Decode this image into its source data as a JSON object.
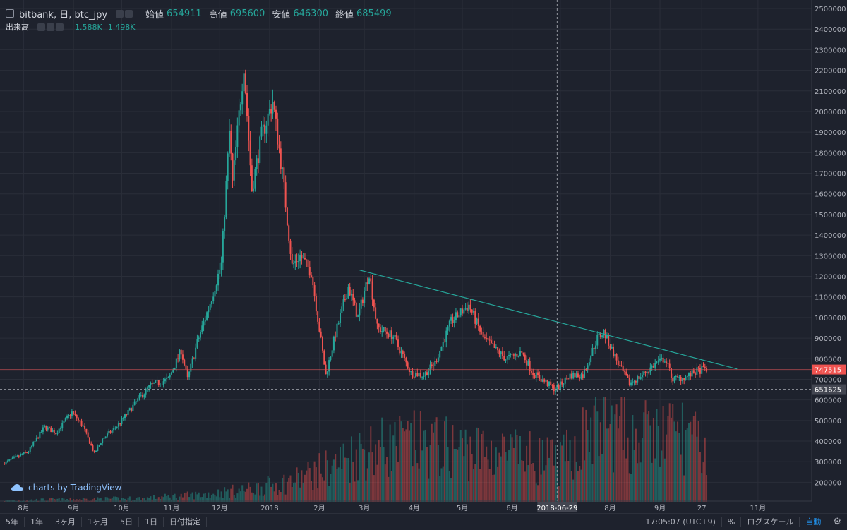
{
  "header": {
    "symbol": "bitbank, 日, btc_jpy",
    "open_label": "始値",
    "open": "654911",
    "high_label": "高値",
    "high": "695600",
    "low_label": "安値",
    "low": "646300",
    "close_label": "終値",
    "close": "685499"
  },
  "volume_legend": {
    "label": "出来高",
    "v1": "1.588K",
    "v2": "1.498K"
  },
  "price_scale": {
    "labels": [
      "2500000",
      "2400000",
      "2300000",
      "2200000",
      "2100000",
      "2000000",
      "1900000",
      "1800000",
      "1700000",
      "1600000",
      "1500000",
      "1400000",
      "1300000",
      "1200000",
      "1100000",
      "1000000",
      "900000",
      "800000",
      "700000",
      "600000",
      "500000",
      "400000",
      "300000",
      "200000"
    ],
    "last_price": "747515",
    "crosshair_price": "651625"
  },
  "time_axis": {
    "labels": [
      "8月",
      "9月",
      "10月",
      "11月",
      "12月",
      "2018",
      "2月",
      "3月",
      "4月",
      "5月",
      "6月",
      "7月",
      "8月",
      "9月",
      "27",
      "11月"
    ],
    "crosshair_date": "2018-06-29"
  },
  "watermark": "charts by TradingView",
  "bottom_bar": {
    "ranges": [
      "5年",
      "1年",
      "3ヶ月",
      "1ヶ月",
      "5日",
      "1日",
      "日付指定"
    ],
    "time": "17:05:07 (UTC+9)",
    "percent": "%",
    "log": "ログスケール",
    "auto": "自動"
  },
  "colors": {
    "up": "#26a69a",
    "down": "#ef5350",
    "trendline": "#26a69a",
    "background": "#1e222d",
    "grid": "#2a2e39"
  },
  "chart_data": {
    "type": "candlestick",
    "ylim": [
      150000,
      2500000
    ],
    "time_range": [
      "2017-07-19",
      "2018-11-05"
    ],
    "series": [
      {
        "name": "price",
        "points": [
          [
            "2017-07-20",
            290000
          ],
          [
            "2017-07-28",
            320000
          ],
          [
            "2017-08-05",
            350000
          ],
          [
            "2017-08-15",
            470000
          ],
          [
            "2017-08-22",
            440000
          ],
          [
            "2017-09-01",
            540000
          ],
          [
            "2017-09-08",
            470000
          ],
          [
            "2017-09-15",
            340000
          ],
          [
            "2017-09-20",
            410000
          ],
          [
            "2017-09-30",
            480000
          ],
          [
            "2017-10-12",
            600000
          ],
          [
            "2017-10-20",
            670000
          ],
          [
            "2017-10-31",
            700000
          ],
          [
            "2017-11-08",
            840000
          ],
          [
            "2017-11-12",
            700000
          ],
          [
            "2017-11-18",
            880000
          ],
          [
            "2017-11-26",
            1070000
          ],
          [
            "2017-12-03",
            1260000
          ],
          [
            "2017-12-08",
            1900000
          ],
          [
            "2017-12-10",
            1650000
          ],
          [
            "2017-12-17",
            2230000
          ],
          [
            "2017-12-22",
            1620000
          ],
          [
            "2017-12-28",
            1880000
          ],
          [
            "2018-01-04",
            2050000
          ],
          [
            "2018-01-10",
            1700000
          ],
          [
            "2018-01-16",
            1250000
          ],
          [
            "2018-01-21",
            1300000
          ],
          [
            "2018-01-28",
            1220000
          ],
          [
            "2018-02-06",
            720000
          ],
          [
            "2018-02-12",
            920000
          ],
          [
            "2018-02-20",
            1150000
          ],
          [
            "2018-02-26",
            1000000
          ],
          [
            "2018-03-05",
            1220000
          ],
          [
            "2018-03-10",
            950000
          ],
          [
            "2018-03-20",
            910000
          ],
          [
            "2018-03-31",
            730000
          ],
          [
            "2018-04-08",
            720000
          ],
          [
            "2018-04-15",
            780000
          ],
          [
            "2018-04-25",
            980000
          ],
          [
            "2018-05-06",
            1060000
          ],
          [
            "2018-05-15",
            900000
          ],
          [
            "2018-05-29",
            800000
          ],
          [
            "2018-06-08",
            830000
          ],
          [
            "2018-06-15",
            730000
          ],
          [
            "2018-06-29",
            650000
          ],
          [
            "2018-07-08",
            720000
          ],
          [
            "2018-07-16",
            720000
          ],
          [
            "2018-07-25",
            900000
          ],
          [
            "2018-07-29",
            930000
          ],
          [
            "2018-08-08",
            760000
          ],
          [
            "2018-08-14",
            680000
          ],
          [
            "2018-08-22",
            720000
          ],
          [
            "2018-08-31",
            780000
          ],
          [
            "2018-09-05",
            800000
          ],
          [
            "2018-09-10",
            700000
          ],
          [
            "2018-09-18",
            710000
          ],
          [
            "2018-09-25",
            740000
          ],
          [
            "2018-09-30",
            750000
          ]
        ]
      },
      {
        "name": "出来高",
        "ylim": [
          0,
          2000
        ],
        "points": [
          [
            "2017-07-20",
            40
          ],
          [
            "2017-09-01",
            60
          ],
          [
            "2017-10-15",
            80
          ],
          [
            "2017-11-20",
            150
          ],
          [
            "2017-12-20",
            250
          ],
          [
            "2018-01-15",
            400
          ],
          [
            "2018-02-10",
            700
          ],
          [
            "2018-03-01",
            1000
          ],
          [
            "2018-04-01",
            1100
          ],
          [
            "2018-05-01",
            1000
          ],
          [
            "2018-06-01",
            900
          ],
          [
            "2018-07-01",
            750
          ],
          [
            "2018-07-25",
            1500
          ],
          [
            "2018-08-15",
            1200
          ],
          [
            "2018-09-15",
            1300
          ],
          [
            "2018-09-30",
            900
          ]
        ]
      }
    ],
    "trendline": {
      "start": [
        "2018-02-26",
        1230000
      ],
      "end": [
        "2018-10-19",
        750000
      ]
    },
    "last_price": 747515,
    "crosshair": {
      "date": "2018-06-29",
      "price": 651625
    }
  }
}
